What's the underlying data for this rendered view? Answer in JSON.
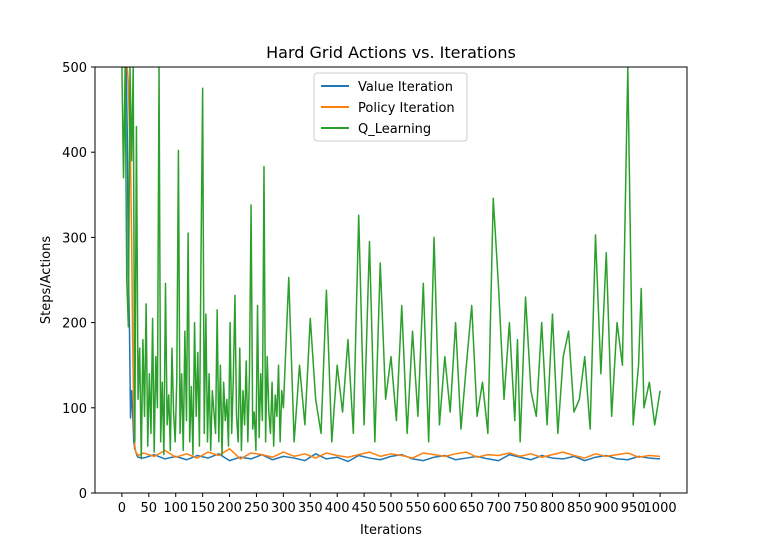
{
  "chart_data": {
    "type": "line",
    "title": "Hard Grid Actions vs. Iterations",
    "xlabel": "Iterations",
    "ylabel": "Steps/Actions",
    "xlim": [
      -50,
      1050
    ],
    "ylim": [
      0,
      500
    ],
    "xticks": [
      0,
      50,
      100,
      150,
      200,
      250,
      300,
      350,
      400,
      450,
      500,
      550,
      600,
      650,
      700,
      750,
      800,
      850,
      900,
      950,
      1000
    ],
    "yticks": [
      0,
      100,
      200,
      300,
      400,
      500
    ],
    "legend_position": "upper center",
    "grid": false,
    "series": [
      {
        "name": "Value Iteration",
        "color": "#1f77b4",
        "x": [
          0,
          2,
          4,
          6,
          8,
          10,
          12,
          14,
          16,
          18,
          20,
          22,
          24,
          26,
          28,
          30,
          40,
          60,
          80,
          100,
          120,
          140,
          160,
          180,
          200,
          220,
          240,
          260,
          280,
          300,
          320,
          340,
          360,
          380,
          400,
          420,
          440,
          460,
          480,
          500,
          520,
          540,
          560,
          580,
          600,
          620,
          640,
          660,
          680,
          700,
          720,
          740,
          760,
          780,
          800,
          820,
          840,
          860,
          880,
          900,
          920,
          940,
          960,
          980,
          1000
        ],
        "y": [
          500,
          500,
          500,
          500,
          500,
          420,
          260,
          195,
          88,
          120,
          95,
          60,
          52,
          48,
          44,
          42,
          41,
          45,
          40,
          43,
          39,
          44,
          41,
          46,
          38,
          42,
          40,
          45,
          39,
          43,
          41,
          38,
          46,
          40,
          42,
          37,
          44,
          41,
          39,
          43,
          45,
          40,
          38,
          42,
          44,
          39,
          41,
          43,
          40,
          38,
          45,
          42,
          39,
          44,
          41,
          40,
          43,
          38,
          42,
          44,
          40,
          39,
          43,
          41,
          40
        ]
      },
      {
        "name": "Policy Iteration",
        "color": "#ff7f0e",
        "x": [
          0,
          2,
          4,
          6,
          8,
          10,
          12,
          14,
          16,
          18,
          20,
          22,
          24,
          26,
          28,
          30,
          40,
          60,
          80,
          100,
          120,
          140,
          160,
          180,
          200,
          220,
          240,
          260,
          280,
          300,
          320,
          340,
          360,
          380,
          400,
          420,
          440,
          460,
          480,
          500,
          520,
          540,
          560,
          580,
          600,
          620,
          640,
          660,
          680,
          700,
          720,
          740,
          760,
          780,
          800,
          820,
          840,
          860,
          880,
          900,
          920,
          940,
          960,
          980,
          1000
        ],
        "y": [
          500,
          500,
          500,
          500,
          500,
          500,
          480,
          430,
          390,
          300,
          180,
          90,
          55,
          48,
          46,
          44,
          47,
          43,
          50,
          42,
          46,
          41,
          48,
          44,
          52,
          40,
          47,
          45,
          42,
          48,
          43,
          46,
          41,
          47,
          44,
          42,
          45,
          48,
          43,
          46,
          44,
          41,
          47,
          45,
          43,
          46,
          48,
          42,
          45,
          44,
          47,
          43,
          46,
          42,
          45,
          48,
          44,
          41,
          46,
          43,
          45,
          47,
          42,
          44,
          43
        ]
      },
      {
        "name": "Q_Learning",
        "color": "#2ca02c",
        "x": [
          0,
          3,
          6,
          9,
          12,
          15,
          18,
          21,
          24,
          27,
          30,
          33,
          36,
          39,
          42,
          45,
          48,
          51,
          54,
          57,
          60,
          63,
          66,
          69,
          72,
          75,
          78,
          81,
          84,
          87,
          90,
          93,
          96,
          99,
          102,
          105,
          108,
          111,
          114,
          117,
          120,
          123,
          126,
          129,
          132,
          135,
          138,
          141,
          144,
          147,
          150,
          153,
          156,
          159,
          162,
          165,
          168,
          171,
          174,
          177,
          180,
          183,
          186,
          189,
          192,
          195,
          198,
          201,
          204,
          207,
          210,
          213,
          216,
          219,
          222,
          225,
          228,
          231,
          234,
          237,
          240,
          243,
          246,
          249,
          252,
          255,
          258,
          261,
          264,
          267,
          270,
          273,
          276,
          279,
          282,
          285,
          288,
          291,
          294,
          297,
          300,
          310,
          320,
          330,
          340,
          350,
          360,
          370,
          380,
          390,
          400,
          410,
          420,
          430,
          440,
          450,
          460,
          470,
          480,
          490,
          500,
          510,
          520,
          530,
          540,
          550,
          560,
          570,
          580,
          590,
          600,
          610,
          620,
          630,
          640,
          650,
          660,
          670,
          680,
          690,
          700,
          710,
          720,
          730,
          735,
          740,
          750,
          760,
          770,
          780,
          790,
          800,
          810,
          820,
          830,
          840,
          850,
          860,
          870,
          880,
          890,
          900,
          910,
          920,
          930,
          940,
          950,
          960,
          965,
          970,
          980,
          990,
          1000
        ],
        "y": [
          500,
          370,
          500,
          250,
          195,
          500,
          390,
          500,
          60,
          430,
          110,
          170,
          40,
          180,
          90,
          222,
          55,
          140,
          70,
          205,
          48,
          160,
          100,
          500,
          60,
          130,
          45,
          246,
          80,
          115,
          50,
          170,
          95,
          60,
          135,
          402,
          70,
          140,
          50,
          190,
          85,
          305,
          60,
          125,
          45,
          200,
          90,
          165,
          55,
          280,
          475,
          70,
          210,
          60,
          140,
          50,
          120,
          95,
          70,
          215,
          60,
          150,
          45,
          130,
          85,
          110,
          55,
          200,
          70,
          135,
          232,
          90,
          60,
          170,
          50,
          120,
          80,
          155,
          60,
          140,
          338,
          75,
          95,
          50,
          220,
          65,
          140,
          85,
          383,
          60,
          160,
          95,
          70,
          130,
          55,
          115,
          90,
          150,
          60,
          120,
          100,
          253,
          60,
          150,
          80,
          205,
          110,
          70,
          238,
          60,
          150,
          95,
          180,
          70,
          326,
          80,
          295,
          60,
          270,
          110,
          160,
          85,
          220,
          70,
          190,
          90,
          246,
          60,
          300,
          80,
          160,
          95,
          200,
          75,
          150,
          220,
          90,
          130,
          70,
          346,
          240,
          110,
          200,
          85,
          180,
          60,
          230,
          120,
          90,
          200,
          80,
          210,
          70,
          160,
          190,
          95,
          110,
          160,
          75,
          303,
          140,
          282,
          90,
          200,
          150,
          500,
          80,
          150,
          240,
          100,
          130,
          80,
          120
        ]
      }
    ]
  }
}
